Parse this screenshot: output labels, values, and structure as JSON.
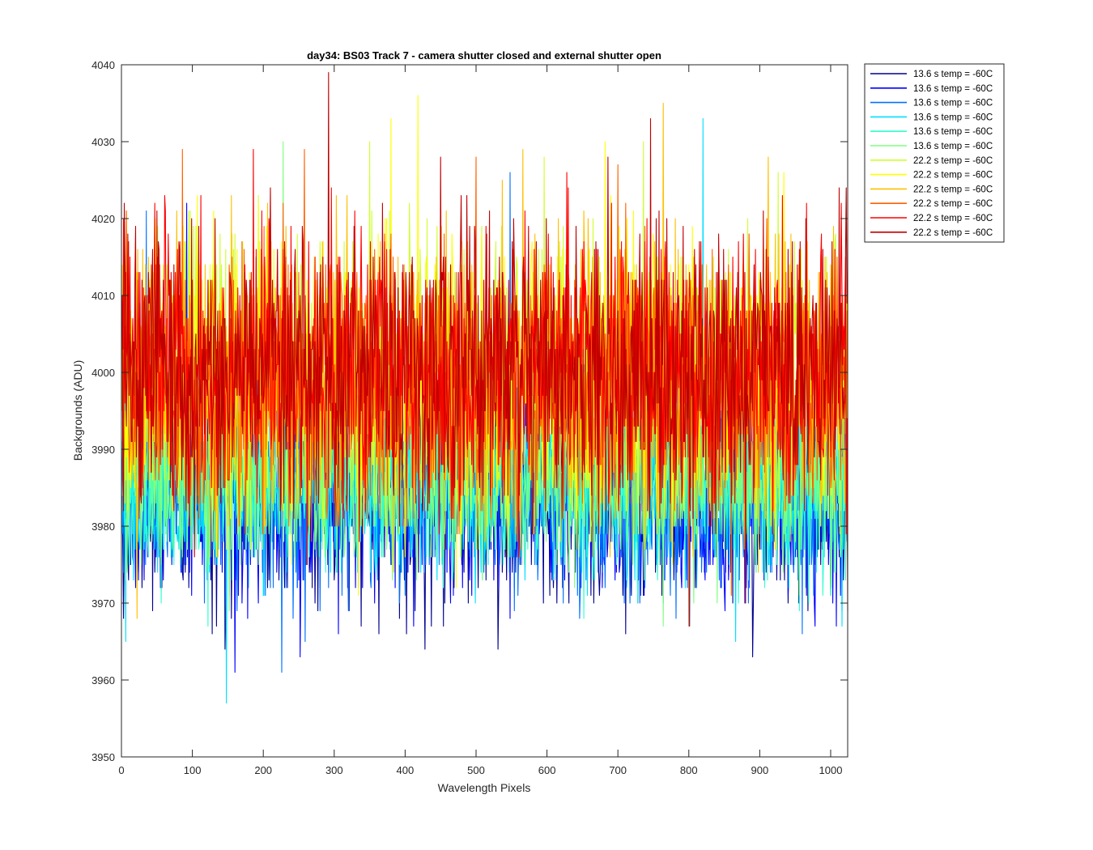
{
  "chart_data": {
    "type": "line",
    "title": "day34: BS03  Track 7 - camera shutter closed and external shutter open",
    "xlabel": "Wavelength Pixels",
    "ylabel": "Backgrounds (ADU)",
    "xlim": [
      0,
      1024
    ],
    "ylim": [
      3950,
      4040
    ],
    "xticks": [
      0,
      100,
      200,
      300,
      400,
      500,
      600,
      700,
      800,
      900,
      1000
    ],
    "yticks": [
      3950,
      3960,
      3970,
      3980,
      3990,
      4000,
      4010,
      4020,
      4030,
      4040
    ],
    "grid": false,
    "legend_position": "outside-top-right",
    "x_values": "pixel index 1 to 1024",
    "series": [
      {
        "name": "13.6 s temp = -60C",
        "color": "#00008f",
        "mean": 3984,
        "spread": 7,
        "extremes": [
          [
            16,
            3976
          ],
          [
            146,
            3964
          ],
          [
            280,
            3972
          ],
          [
            402,
            3966
          ],
          [
            428,
            3964
          ],
          [
            531,
            3964
          ],
          [
            890,
            3963
          ]
        ]
      },
      {
        "name": "13.6 s temp = -60C",
        "color": "#0000ff",
        "mean": 3985,
        "spread": 7,
        "extremes": [
          [
            92,
            4022
          ],
          [
            160,
            3961
          ],
          [
            252,
            3963
          ],
          [
            330,
            3972
          ],
          [
            412,
            3967
          ],
          [
            548,
            3968
          ],
          [
            1008,
            3967
          ]
        ]
      },
      {
        "name": "13.6 s temp = -60C",
        "color": "#0070ff",
        "mean": 3985,
        "spread": 7,
        "extremes": [
          [
            35,
            4021
          ],
          [
            226,
            3961
          ],
          [
            372,
            3985
          ],
          [
            548,
            4026
          ],
          [
            620,
            3975
          ],
          [
            960,
            3966
          ]
        ]
      },
      {
        "name": "13.6 s temp = -60C",
        "color": "#00dfff",
        "mean": 3986,
        "spread": 6,
        "extremes": [
          [
            6,
            3965
          ],
          [
            148,
            3957
          ],
          [
            444,
            3986
          ],
          [
            820,
            4033
          ],
          [
            866,
            3965
          ],
          [
            1016,
            3967
          ]
        ]
      },
      {
        "name": "13.6 s temp = -60C",
        "color": "#30ffcf",
        "mean": 3986,
        "spread": 6,
        "extremes": [
          [
            56,
            3970
          ],
          [
            122,
            3967
          ],
          [
            230,
            3980
          ],
          [
            440,
            3985
          ],
          [
            652,
            3968
          ],
          [
            728,
            3970
          ],
          [
            956,
            3969
          ]
        ]
      },
      {
        "name": "13.6 s temp = -60C",
        "color": "#7fff7f",
        "mean": 3987,
        "spread": 6,
        "extremes": [
          [
            40,
            3985
          ],
          [
            152,
            3969
          ],
          [
            228,
            4030
          ],
          [
            560,
            3990
          ],
          [
            764,
            3967
          ],
          [
            840,
            3970
          ]
        ]
      },
      {
        "name": "22.2 s temp = -60C",
        "color": "#cfff30",
        "mean": 3999,
        "spread": 9,
        "extremes": [
          [
            240,
            3975
          ],
          [
            350,
            4030
          ],
          [
            396,
            3990
          ],
          [
            596,
            4028
          ],
          [
            736,
            4030
          ],
          [
            926,
            4026
          ]
        ]
      },
      {
        "name": "22.2 s temp = -60C",
        "color": "#ffff00",
        "mean": 3999,
        "spread": 9,
        "extremes": [
          [
            380,
            4033
          ],
          [
            418,
            4036
          ],
          [
            334,
            3971
          ],
          [
            472,
            3972
          ],
          [
            682,
            4030
          ],
          [
            934,
            4026
          ]
        ]
      },
      {
        "name": "22.2 s temp = -60C",
        "color": "#ffbf00",
        "mean": 3999,
        "spread": 9,
        "extremes": [
          [
            22,
            3968
          ],
          [
            136,
            3976
          ],
          [
            566,
            4029
          ],
          [
            764,
            4035
          ],
          [
            912,
            4028
          ],
          [
            1022,
            3995
          ]
        ]
      },
      {
        "name": "22.2 s temp = -60C",
        "color": "#ff6000",
        "mean": 3999,
        "spread": 9,
        "extremes": [
          [
            86,
            4029
          ],
          [
            800,
            3967
          ],
          [
            258,
            4029
          ],
          [
            500,
            4028
          ],
          [
            700,
            4027
          ],
          [
            860,
            3971
          ]
        ]
      },
      {
        "name": "22.2 s temp = -60C",
        "color": "#ff0000",
        "mean": 4000,
        "spread": 9,
        "extremes": [
          [
            186,
            4029
          ],
          [
            10,
            4017
          ],
          [
            296,
            4024
          ],
          [
            628,
            4026
          ],
          [
            1024,
            3969
          ],
          [
            560,
            3976
          ]
        ]
      },
      {
        "name": "22.2 s temp = -60C",
        "color": "#bf0000",
        "mean": 4001,
        "spread": 9,
        "extremes": [
          [
            292,
            4039
          ],
          [
            746,
            4033
          ],
          [
            450,
            4028
          ],
          [
            686,
            4028
          ],
          [
            880,
            3970
          ],
          [
            1012,
            4024
          ]
        ]
      }
    ]
  }
}
